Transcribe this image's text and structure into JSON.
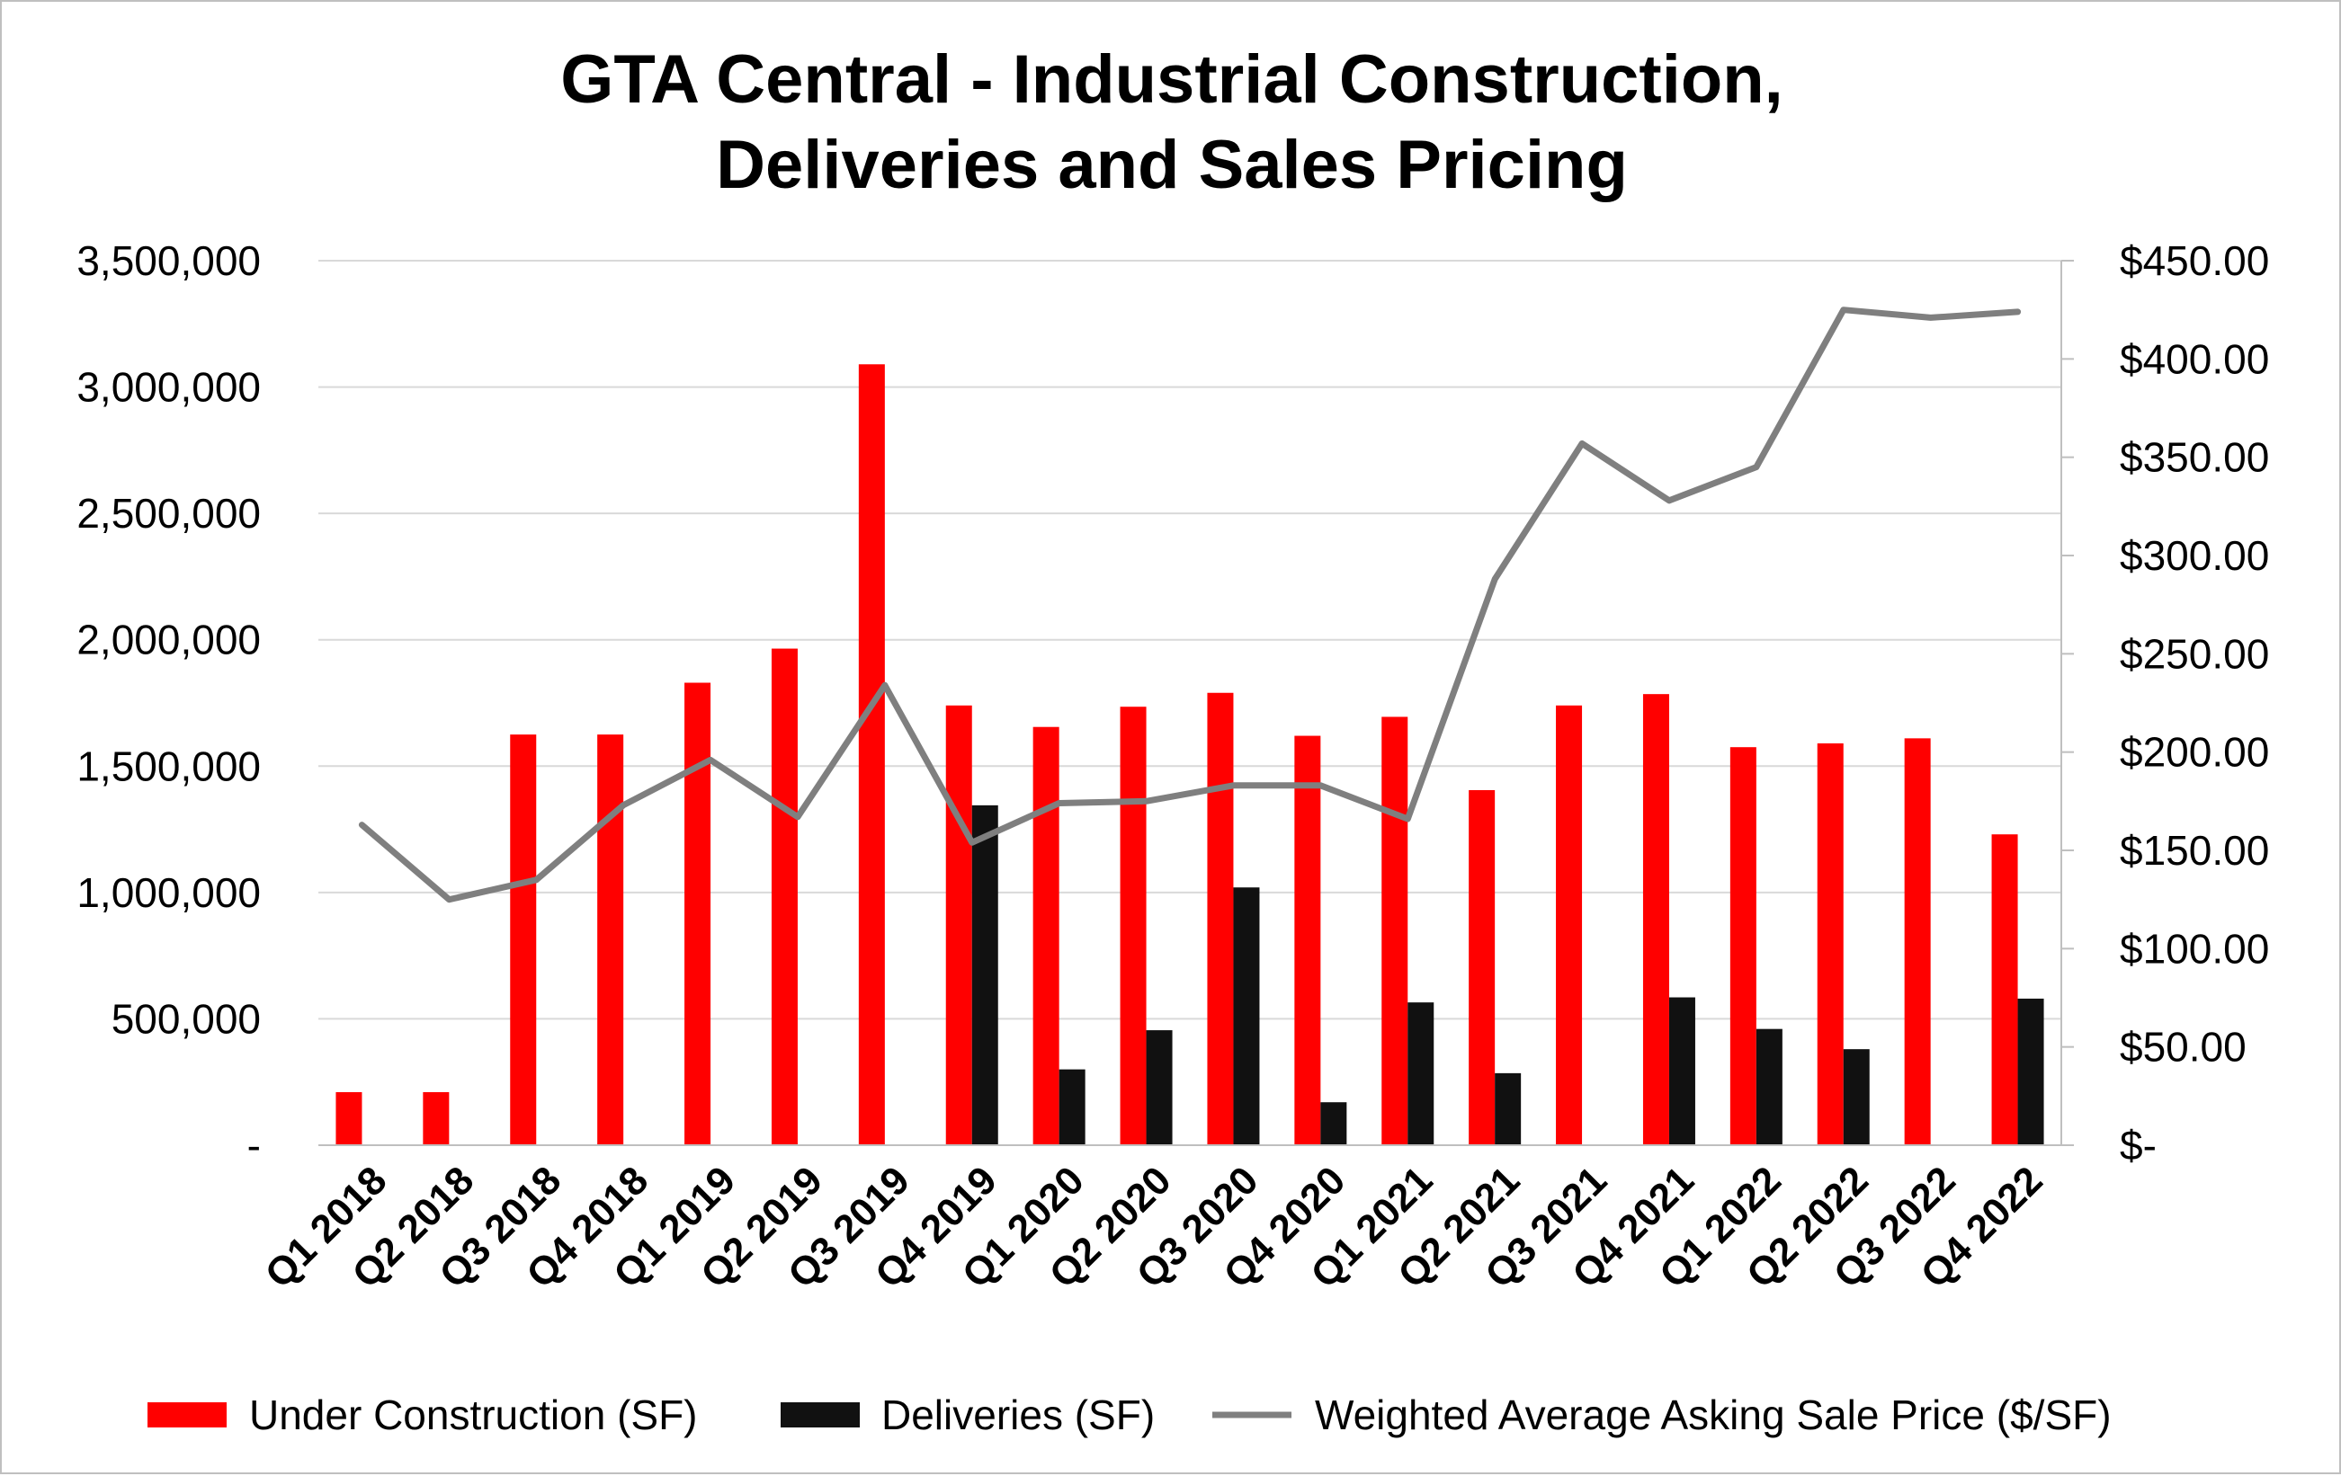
{
  "chart_data": {
    "type": "bar",
    "title": [
      "GTA Central - Industrial Construction,",
      "Deliveries and Sales Pricing"
    ],
    "categories": [
      "Q1 2018",
      "Q2 2018",
      "Q3 2018",
      "Q4 2018",
      "Q1 2019",
      "Q2 2019",
      "Q3 2019",
      "Q4 2019",
      "Q1 2020",
      "Q2 2020",
      "Q3 2020",
      "Q4 2020",
      "Q1 2021",
      "Q2 2021",
      "Q3 2021",
      "Q4 2021",
      "Q1 2022",
      "Q2 2022",
      "Q3 2022",
      "Q4 2022"
    ],
    "series": [
      {
        "name": "Under Construction (SF)",
        "type": "bar",
        "axis": "left",
        "color": "#ff0000",
        "values": [
          210000,
          210000,
          1625000,
          1625000,
          1830000,
          1965000,
          3090000,
          1740000,
          1655000,
          1735000,
          1790000,
          1620000,
          1695000,
          1405000,
          1740000,
          1785000,
          1575000,
          1590000,
          1610000,
          1230000
        ]
      },
      {
        "name": "Deliveries (SF)",
        "type": "bar",
        "axis": "left",
        "color": "#111111",
        "values": [
          0,
          0,
          0,
          0,
          0,
          0,
          0,
          1345000,
          300000,
          455000,
          1020000,
          170000,
          565000,
          285000,
          0,
          585000,
          460000,
          380000,
          0,
          580000
        ]
      },
      {
        "name": "Weighted Average Asking Sale Price ($/SF)",
        "type": "line",
        "axis": "right",
        "color": "#7f7f7f",
        "values": [
          163,
          125,
          135,
          173,
          196,
          167,
          234,
          154,
          174,
          175,
          183,
          183,
          166,
          288,
          357,
          328,
          345,
          425,
          421,
          424
        ]
      }
    ],
    "y_left": {
      "ylim": [
        0,
        3500000
      ],
      "ticks": [
        0,
        500000,
        1000000,
        1500000,
        2000000,
        2500000,
        3000000,
        3500000
      ],
      "tick_labels": [
        "-",
        "500,000",
        "1,000,000",
        "1,500,000",
        "2,000,000",
        "2,500,000",
        "3,000,000",
        "3,500,000"
      ]
    },
    "y_right": {
      "ylim": [
        0,
        450
      ],
      "ticks": [
        0,
        50,
        100,
        150,
        200,
        250,
        300,
        350,
        400,
        450
      ],
      "tick_labels": [
        "$-",
        "$50.00",
        "$100.00",
        "$150.00",
        "$200.00",
        "$250.00",
        "$300.00",
        "$350.00",
        "$400.00",
        "$450.00"
      ]
    },
    "grid": true,
    "legend_position": "bottom",
    "colors": {
      "gridline": "#d9d9d9",
      "axis": "#bfbfbf",
      "frame": "#bfbfbf"
    }
  }
}
